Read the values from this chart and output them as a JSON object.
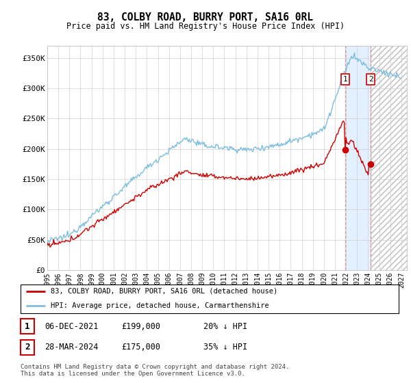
{
  "title": "83, COLBY ROAD, BURRY PORT, SA16 0RL",
  "subtitle": "Price paid vs. HM Land Registry's House Price Index (HPI)",
  "xlim_start": 1995.0,
  "xlim_end": 2027.5,
  "ylim": [
    0,
    370000
  ],
  "yticks": [
    0,
    50000,
    100000,
    150000,
    200000,
    250000,
    300000,
    350000
  ],
  "ytick_labels": [
    "£0",
    "£50K",
    "£100K",
    "£150K",
    "£200K",
    "£250K",
    "£300K",
    "£350K"
  ],
  "xtick_years": [
    1995,
    1996,
    1997,
    1998,
    1999,
    2000,
    2001,
    2002,
    2003,
    2004,
    2005,
    2006,
    2007,
    2008,
    2009,
    2010,
    2011,
    2012,
    2013,
    2014,
    2015,
    2016,
    2017,
    2018,
    2019,
    2020,
    2021,
    2022,
    2023,
    2024,
    2025,
    2026,
    2027
  ],
  "hpi_color": "#7bbde0",
  "price_color": "#cc0000",
  "marker1_date": 2021.92,
  "marker1_price": 199000,
  "marker2_date": 2024.24,
  "marker2_price": 175000,
  "shade_start": 2021.92,
  "shade_end": 2024.24,
  "hatch_start": 2024.24,
  "hatch_end": 2027.5,
  "legend_label_price": "83, COLBY ROAD, BURRY PORT, SA16 0RL (detached house)",
  "legend_label_hpi": "HPI: Average price, detached house, Carmarthenshire",
  "note1_date": "06-DEC-2021",
  "note1_price": "£199,000",
  "note1_hpi": "20% ↓ HPI",
  "note2_date": "28-MAR-2024",
  "note2_price": "£175,000",
  "note2_hpi": "35% ↓ HPI",
  "footer": "Contains HM Land Registry data © Crown copyright and database right 2024.\nThis data is licensed under the Open Government Licence v3.0.",
  "background_color": "#ffffff",
  "shade_color": "#ddeeff",
  "hatch_color": "#e8e8e8",
  "vline_color": "#dd8888",
  "annotation_box_color": "#cc0000",
  "grid_color": "#d0d0d0",
  "spine_color": "#cccccc"
}
